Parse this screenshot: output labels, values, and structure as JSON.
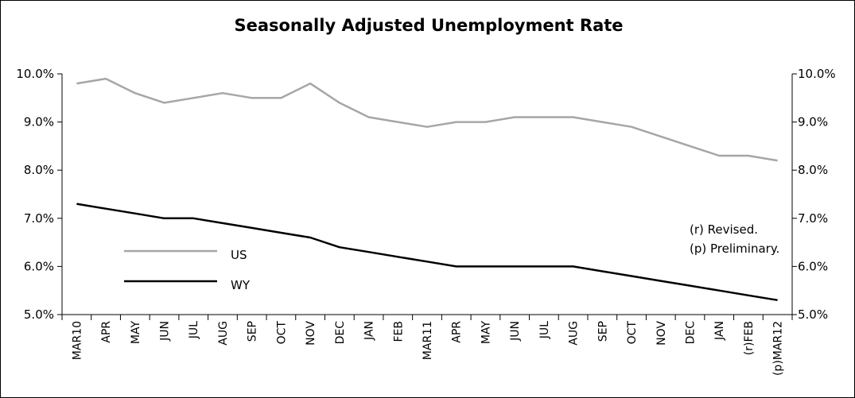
{
  "chart_data": {
    "type": "line",
    "title": "Seasonally Adjusted Unemployment Rate",
    "xlabel": "",
    "ylabel": "",
    "ylim": [
      5.0,
      10.0
    ],
    "yticks": [
      "10.0%",
      "9.0%",
      "8.0%",
      "7.0%",
      "6.0%",
      "5.0%"
    ],
    "ytick_values": [
      10.0,
      9.0,
      8.0,
      7.0,
      6.0,
      5.0
    ],
    "categories": [
      "MAR10",
      "APR",
      "MAY",
      "JUN",
      "JUL",
      "AUG",
      "SEP",
      "OCT",
      "NOV",
      "DEC",
      "JAN",
      "FEB",
      "MAR11",
      "APR",
      "MAY",
      "JUN",
      "JUL",
      "AUG",
      "SEP",
      "OCT",
      "NOV",
      "DEC",
      "JAN",
      "(r)FEB",
      "(p)MAR12"
    ],
    "series": [
      {
        "name": "US",
        "color": "#a6a6a6",
        "values": [
          9.8,
          9.9,
          9.6,
          9.4,
          9.5,
          9.6,
          9.5,
          9.5,
          9.8,
          9.4,
          9.1,
          9.0,
          8.9,
          9.0,
          9.0,
          9.1,
          9.1,
          9.1,
          9.0,
          8.9,
          8.7,
          8.5,
          8.3,
          8.3,
          8.2
        ]
      },
      {
        "name": "WY",
        "color": "#000000",
        "values": [
          7.3,
          7.2,
          7.1,
          7.0,
          7.0,
          6.9,
          6.8,
          6.7,
          6.6,
          6.4,
          6.3,
          6.2,
          6.1,
          6.0,
          6.0,
          6.0,
          6.0,
          6.0,
          5.9,
          5.8,
          5.7,
          5.6,
          5.5,
          5.4,
          5.3
        ]
      }
    ],
    "legend_position": "left-middle",
    "notes": [
      "(r) Revised.",
      "(p) Preliminary."
    ],
    "grid": false
  }
}
